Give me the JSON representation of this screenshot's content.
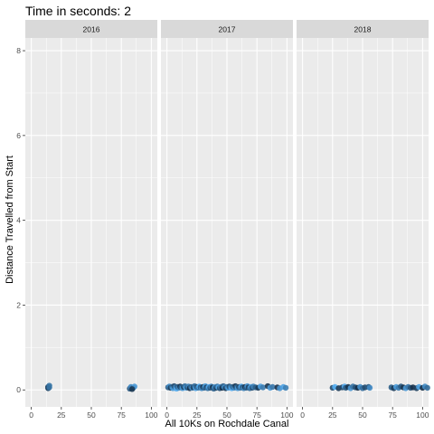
{
  "chart_data": {
    "type": "scatter",
    "title": "Time in seconds: 2",
    "xlabel": "All 10Ks on Rochdale Canal",
    "ylabel": "Distance Travelled from Start",
    "xlim": [
      -5,
      105
    ],
    "ylim": [
      -0.4,
      8.3
    ],
    "x_ticks": [
      0,
      25,
      50,
      75,
      100
    ],
    "y_ticks": [
      0,
      2,
      4,
      6,
      8
    ],
    "grid": true,
    "facets": [
      "2016",
      "2017",
      "2018"
    ],
    "colors": {
      "light": "#56B1F7",
      "dark": "#132B43",
      "panel": "#EBEBEB",
      "strip": "#D9D9D9",
      "grid": "#FFFFFF"
    },
    "series": [
      {
        "facet": "2016",
        "points": [
          {
            "x": 14,
            "y": 0.07
          },
          {
            "x": 15,
            "y": 0.1
          },
          {
            "x": 14,
            "y": 0.04
          },
          {
            "x": 15,
            "y": 0.06
          },
          {
            "x": 82,
            "y": 0.03
          },
          {
            "x": 83,
            "y": 0.07
          },
          {
            "x": 85,
            "y": 0.05
          },
          {
            "x": 86,
            "y": 0.08
          },
          {
            "x": 84,
            "y": 0.02
          }
        ]
      },
      {
        "facet": "2017",
        "points": [
          {
            "x": 1,
            "y": 0.06
          },
          {
            "x": 2,
            "y": 0.08
          },
          {
            "x": 3,
            "y": 0.05
          },
          {
            "x": 4,
            "y": 0.07
          },
          {
            "x": 5,
            "y": 0.04
          },
          {
            "x": 6,
            "y": 0.09
          },
          {
            "x": 7,
            "y": 0.06
          },
          {
            "x": 8,
            "y": 0.03
          },
          {
            "x": 9,
            "y": 0.07
          },
          {
            "x": 10,
            "y": 0.05
          },
          {
            "x": 11,
            "y": 0.08
          },
          {
            "x": 12,
            "y": 0.06
          },
          {
            "x": 13,
            "y": 0.04
          },
          {
            "x": 14,
            "y": 0.07
          },
          {
            "x": 15,
            "y": 0.09
          },
          {
            "x": 16,
            "y": 0.05
          },
          {
            "x": 17,
            "y": 0.06
          },
          {
            "x": 18,
            "y": 0.08
          },
          {
            "x": 19,
            "y": 0.04
          },
          {
            "x": 20,
            "y": 0.07
          },
          {
            "x": 21,
            "y": 0.05
          },
          {
            "x": 22,
            "y": 0.06
          },
          {
            "x": 23,
            "y": 0.09
          },
          {
            "x": 24,
            "y": 0.04
          },
          {
            "x": 25,
            "y": 0.07
          },
          {
            "x": 26,
            "y": 0.05
          },
          {
            "x": 27,
            "y": 0.08
          },
          {
            "x": 28,
            "y": 0.06
          },
          {
            "x": 29,
            "y": 0.04
          },
          {
            "x": 30,
            "y": 0.07
          },
          {
            "x": 31,
            "y": 0.05
          },
          {
            "x": 32,
            "y": 0.09
          },
          {
            "x": 33,
            "y": 0.06
          },
          {
            "x": 34,
            "y": 0.04
          },
          {
            "x": 35,
            "y": 0.07
          },
          {
            "x": 36,
            "y": 0.05
          },
          {
            "x": 37,
            "y": 0.08
          },
          {
            "x": 38,
            "y": 0.06
          },
          {
            "x": 39,
            "y": 0.03
          },
          {
            "x": 40,
            "y": 0.07
          },
          {
            "x": 41,
            "y": 0.05
          },
          {
            "x": 42,
            "y": 0.08
          },
          {
            "x": 43,
            "y": 0.06
          },
          {
            "x": 44,
            "y": 0.04
          },
          {
            "x": 45,
            "y": 0.07
          },
          {
            "x": 46,
            "y": 0.05
          },
          {
            "x": 47,
            "y": 0.09
          },
          {
            "x": 48,
            "y": 0.06
          },
          {
            "x": 49,
            "y": 0.04
          },
          {
            "x": 50,
            "y": 0.07
          },
          {
            "x": 51,
            "y": 0.05
          },
          {
            "x": 52,
            "y": 0.08
          },
          {
            "x": 53,
            "y": 0.06
          },
          {
            "x": 54,
            "y": 0.04
          },
          {
            "x": 55,
            "y": 0.07
          },
          {
            "x": 56,
            "y": 0.05
          },
          {
            "x": 57,
            "y": 0.09
          },
          {
            "x": 58,
            "y": 0.06
          },
          {
            "x": 59,
            "y": 0.04
          },
          {
            "x": 60,
            "y": 0.07
          },
          {
            "x": 61,
            "y": 0.05
          },
          {
            "x": 62,
            "y": 0.08
          },
          {
            "x": 63,
            "y": 0.06
          },
          {
            "x": 64,
            "y": 0.04
          },
          {
            "x": 65,
            "y": 0.07
          },
          {
            "x": 66,
            "y": 0.05
          },
          {
            "x": 67,
            "y": 0.09
          },
          {
            "x": 68,
            "y": 0.06
          },
          {
            "x": 69,
            "y": 0.04
          },
          {
            "x": 70,
            "y": 0.07
          },
          {
            "x": 71,
            "y": 0.05
          },
          {
            "x": 72,
            "y": 0.08
          },
          {
            "x": 74,
            "y": 0.06
          },
          {
            "x": 76,
            "y": 0.05
          },
          {
            "x": 78,
            "y": 0.08
          },
          {
            "x": 80,
            "y": 0.06
          },
          {
            "x": 84,
            "y": 0.09
          },
          {
            "x": 86,
            "y": 0.05
          },
          {
            "x": 88,
            "y": 0.07
          },
          {
            "x": 92,
            "y": 0.06
          },
          {
            "x": 94,
            "y": 0.04
          },
          {
            "x": 97,
            "y": 0.07
          },
          {
            "x": 99,
            "y": 0.05
          }
        ]
      },
      {
        "facet": "2018",
        "points": [
          {
            "x": 25,
            "y": 0.05
          },
          {
            "x": 27,
            "y": 0.07
          },
          {
            "x": 30,
            "y": 0.04
          },
          {
            "x": 33,
            "y": 0.06
          },
          {
            "x": 35,
            "y": 0.08
          },
          {
            "x": 36,
            "y": 0.05
          },
          {
            "x": 38,
            "y": 0.07
          },
          {
            "x": 40,
            "y": 0.04
          },
          {
            "x": 42,
            "y": 0.08
          },
          {
            "x": 44,
            "y": 0.06
          },
          {
            "x": 46,
            "y": 0.05
          },
          {
            "x": 48,
            "y": 0.07
          },
          {
            "x": 50,
            "y": 0.04
          },
          {
            "x": 52,
            "y": 0.06
          },
          {
            "x": 55,
            "y": 0.07
          },
          {
            "x": 56,
            "y": 0.05
          },
          {
            "x": 74,
            "y": 0.06
          },
          {
            "x": 76,
            "y": 0.04
          },
          {
            "x": 78,
            "y": 0.07
          },
          {
            "x": 80,
            "y": 0.05
          },
          {
            "x": 82,
            "y": 0.08
          },
          {
            "x": 84,
            "y": 0.06
          },
          {
            "x": 86,
            "y": 0.04
          },
          {
            "x": 88,
            "y": 0.07
          },
          {
            "x": 90,
            "y": 0.05
          },
          {
            "x": 92,
            "y": 0.06
          },
          {
            "x": 95,
            "y": 0.04
          },
          {
            "x": 97,
            "y": 0.07
          },
          {
            "x": 100,
            "y": 0.05
          },
          {
            "x": 102,
            "y": 0.08
          },
          {
            "x": 104,
            "y": 0.05
          }
        ]
      }
    ]
  }
}
